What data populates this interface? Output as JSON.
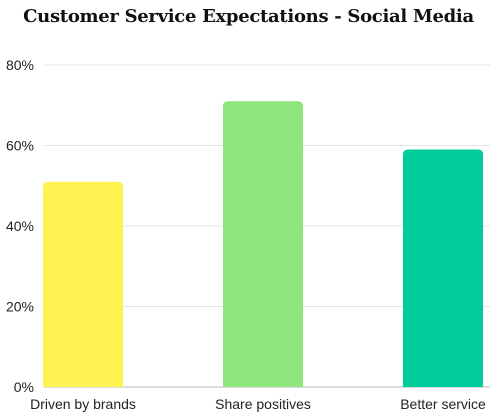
{
  "chart_data": {
    "type": "bar",
    "title": "Customer Service Expectations - Social Media",
    "xlabel": "",
    "ylabel": "",
    "categories": [
      "Driven by brands",
      "Share positives",
      "Better service"
    ],
    "values": [
      51,
      71,
      59
    ],
    "colors": [
      "#FFF352",
      "#8EE67C",
      "#00CC9B"
    ],
    "ylim": [
      0,
      80
    ],
    "yticks": [
      0,
      20,
      40,
      60,
      80
    ],
    "ytick_labels": [
      "0%",
      "20%",
      "40%",
      "60%",
      "80%"
    ],
    "grid": true,
    "legend": "none"
  }
}
